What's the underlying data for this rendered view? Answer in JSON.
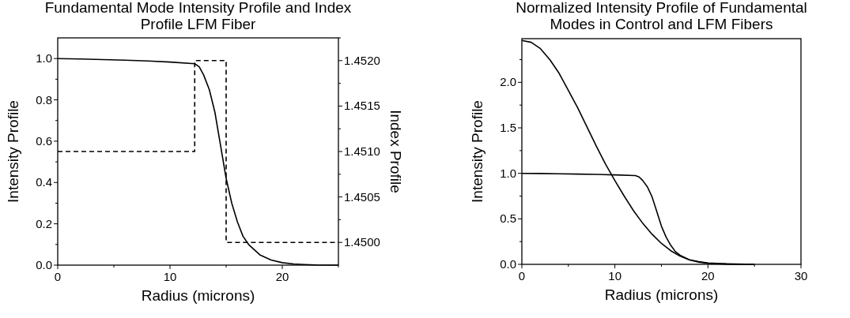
{
  "chart_data": [
    {
      "type": "line",
      "title": "Fundamental Mode Intensity Profile and Index Profile LFM Fiber",
      "xlabel": "Radius (microns)",
      "ylabel": "Intensity Profile",
      "y2label": "Index Profile",
      "xlim": [
        0,
        25
      ],
      "xticks": [
        0,
        {
          "value": 5,
          "label": null
        },
        10,
        {
          "value": 15,
          "label": null
        },
        20,
        {
          "value": 25,
          "label": null
        }
      ],
      "ylim": [
        0,
        1.1
      ],
      "yticks": [
        {
          "value": 0,
          "label": "0.0"
        },
        {
          "value": 0.1,
          "label": null
        },
        {
          "value": 0.2,
          "label": "0.2"
        },
        {
          "value": 0.3,
          "label": null
        },
        {
          "value": 0.4,
          "label": "0.4"
        },
        {
          "value": 0.5,
          "label": null
        },
        {
          "value": 0.6,
          "label": "0.6"
        },
        {
          "value": 0.7,
          "label": null
        },
        {
          "value": 0.8,
          "label": "0.8"
        },
        {
          "value": 0.9,
          "label": null
        },
        {
          "value": 1,
          "label": "1.0"
        }
      ],
      "y2lim": [
        1.44975,
        1.45225
      ],
      "y2ticks": [
        {
          "value": 1.45,
          "label": "1.4500"
        },
        {
          "value": 1.45025,
          "label": null
        },
        {
          "value": 1.4505,
          "label": "1.4505"
        },
        {
          "value": 1.45075,
          "label": null
        },
        {
          "value": 1.451,
          "label": "1.4510"
        },
        {
          "value": 1.45125,
          "label": null
        },
        {
          "value": 1.4515,
          "label": "1.4515"
        },
        {
          "value": 1.45175,
          "label": null
        },
        {
          "value": 1.452,
          "label": "1.4520"
        },
        {
          "value": 1.45225,
          "label": null
        }
      ],
      "grid": false,
      "series": [
        {
          "color": "#000000",
          "line_style": "solid",
          "x": [
            0,
            2,
            4,
            6,
            8,
            10,
            12.2,
            12.6,
            13,
            13.5,
            14,
            14.5,
            15,
            15.5,
            16,
            16.5,
            17,
            18,
            19,
            20,
            21,
            22,
            23,
            25
          ],
          "values": [
            1.0,
            0.998,
            0.995,
            0.992,
            0.988,
            0.983,
            0.975,
            0.96,
            0.92,
            0.85,
            0.74,
            0.58,
            0.42,
            0.3,
            0.21,
            0.14,
            0.1,
            0.05,
            0.025,
            0.012,
            0.006,
            0.003,
            0.001,
            0
          ]
        },
        {
          "type": "step",
          "axis": "y2",
          "color": "#000000",
          "line_style": "dashed",
          "x": [
            0,
            12.2,
            15,
            25
          ],
          "values": [
            1.451,
            1.452,
            1.45,
            1.45
          ]
        }
      ]
    },
    {
      "type": "line",
      "title": "Normalized Intensity Profile of Fundamental Modes in Control and LFM Fibers",
      "xlabel": "Radius (microns)",
      "ylabel": "Intensity Profile",
      "xlim": [
        0,
        30
      ],
      "xticks": [
        0,
        {
          "value": 5,
          "label": null
        },
        10,
        {
          "value": 15,
          "label": null
        },
        20,
        {
          "value": 25,
          "label": null
        },
        30
      ],
      "ylim": [
        0,
        2.48
      ],
      "yticks": [
        {
          "value": 0,
          "label": "0.0"
        },
        {
          "value": 0.25,
          "label": null
        },
        {
          "value": 0.5,
          "label": "0.5"
        },
        {
          "value": 0.75,
          "label": null
        },
        {
          "value": 1,
          "label": "1.0"
        },
        {
          "value": 1.25,
          "label": null
        },
        {
          "value": 1.5,
          "label": "1.5"
        },
        {
          "value": 1.75,
          "label": null
        },
        {
          "value": 2,
          "label": "2.0"
        },
        {
          "value": 2.25,
          "label": null
        }
      ],
      "grid": false,
      "series": [
        {
          "color": "#000000",
          "line_style": "solid",
          "x": [
            0,
            1,
            2,
            3,
            4,
            5,
            6,
            7,
            8,
            9,
            10,
            11,
            12,
            13,
            14,
            15,
            16,
            17,
            18,
            19,
            20,
            22,
            25
          ],
          "values": [
            2.46,
            2.44,
            2.37,
            2.25,
            2.1,
            1.91,
            1.72,
            1.51,
            1.3,
            1.1,
            0.92,
            0.75,
            0.59,
            0.45,
            0.33,
            0.23,
            0.15,
            0.09,
            0.05,
            0.03,
            0.015,
            0.005,
            0
          ]
        },
        {
          "color": "#000000",
          "line_style": "solid",
          "x": [
            0,
            2,
            4,
            6,
            8,
            10,
            12.2,
            12.6,
            13,
            13.5,
            14,
            14.5,
            15,
            15.5,
            16,
            16.5,
            17,
            18,
            19,
            20,
            21,
            22,
            23,
            25
          ],
          "values": [
            1.0,
            0.998,
            0.995,
            0.992,
            0.988,
            0.983,
            0.975,
            0.96,
            0.92,
            0.85,
            0.74,
            0.58,
            0.42,
            0.3,
            0.21,
            0.14,
            0.1,
            0.05,
            0.025,
            0.012,
            0.006,
            0.003,
            0.001,
            0
          ]
        }
      ]
    }
  ]
}
